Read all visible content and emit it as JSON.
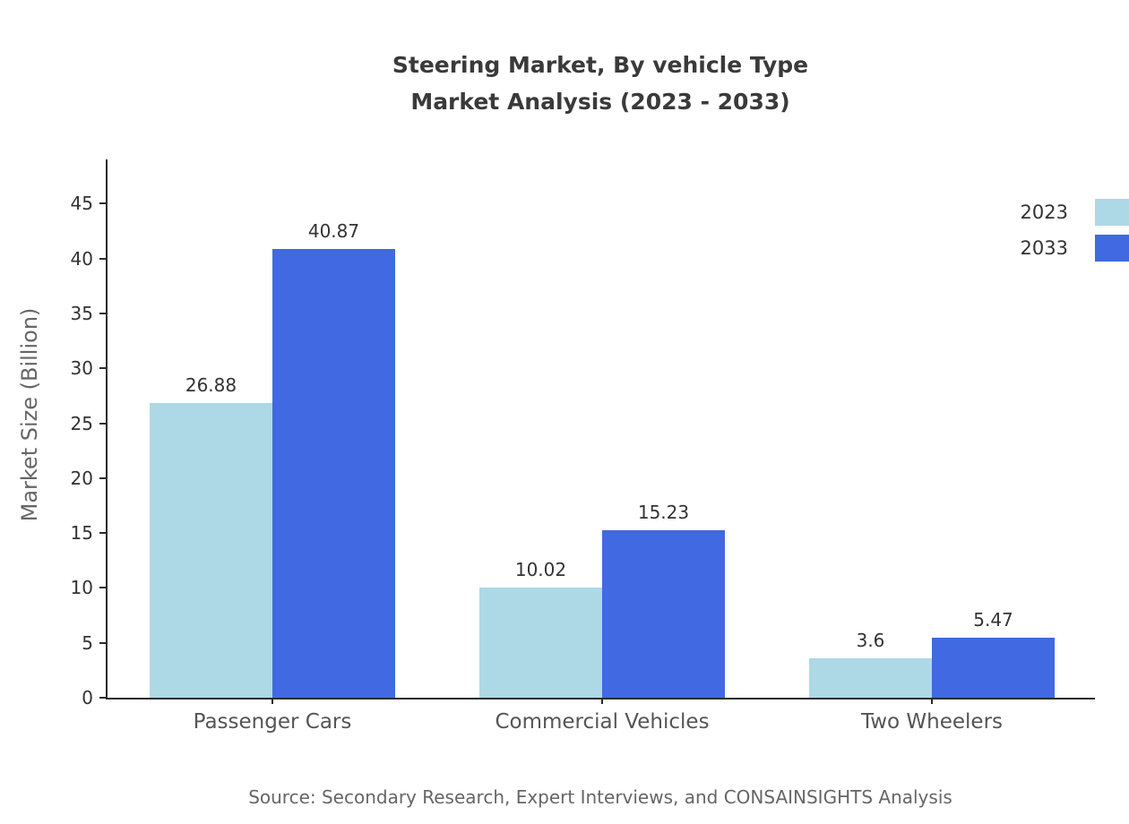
{
  "title": {
    "line1": "Steering Market, By vehicle Type",
    "line2": "Market Analysis (2023 - 2033)"
  },
  "source": "Source: Secondary Research, Expert Interviews, and CONSAINSIGHTS Analysis",
  "chart_data": {
    "type": "bar",
    "title": "Steering Market, By vehicle Type - Market Analysis (2023 - 2033)",
    "categories": [
      "Passenger Cars",
      "Commercial Vehicles",
      "Two Wheelers"
    ],
    "series": [
      {
        "name": "2023",
        "color": "#ADD8E6",
        "values": [
          26.88,
          10.02,
          3.6
        ]
      },
      {
        "name": "2033",
        "color": "#4169E1",
        "values": [
          40.87,
          15.23,
          5.47
        ]
      }
    ],
    "xlabel": "",
    "ylabel": "Market Size (Billion)",
    "yticks": [
      0,
      5,
      10,
      15,
      20,
      25,
      30,
      35,
      40,
      45
    ],
    "ylim": [
      0,
      49.2
    ],
    "grid": false,
    "legend": {
      "position": "top-right",
      "entries": [
        "2023",
        "2033"
      ]
    }
  }
}
